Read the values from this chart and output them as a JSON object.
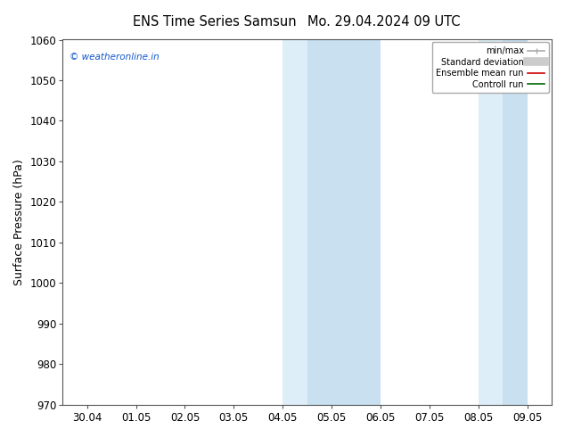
{
  "title_left": "ENS Time Series Samsun",
  "title_right": "Mo. 29.04.2024 09 UTC",
  "ylabel": "Surface Pressure (hPa)",
  "ylim": [
    970,
    1060
  ],
  "yticks": [
    970,
    980,
    990,
    1000,
    1010,
    1020,
    1030,
    1040,
    1050,
    1060
  ],
  "xtick_labels": [
    "30.04",
    "01.05",
    "02.05",
    "03.05",
    "04.05",
    "05.05",
    "06.05",
    "07.05",
    "08.05",
    "09.05"
  ],
  "xtick_positions": [
    0,
    1,
    2,
    3,
    4,
    5,
    6,
    7,
    8,
    9
  ],
  "shade_bands": [
    {
      "xmin": 4.0,
      "xmax": 5.0,
      "color": "#ddeef8"
    },
    {
      "xmin": 5.0,
      "xmax": 6.0,
      "color": "#c8e0f0"
    },
    {
      "xmin": 8.0,
      "xmax": 9.0,
      "color": "#ddeef8"
    }
  ],
  "shade_bands2": [
    {
      "xmin": 4.5,
      "xmax": 5.0,
      "color": "#c8e0f0"
    },
    {
      "xmin": 8.5,
      "xmax": 9.0,
      "color": "#c8e0f0"
    }
  ],
  "watermark_text": "© weatheronline.in",
  "watermark_color": "#1155cc",
  "bg_color": "#ffffff",
  "plot_bg_color": "#ffffff",
  "title_fontsize": 10.5,
  "tick_fontsize": 8.5,
  "ylabel_fontsize": 9
}
